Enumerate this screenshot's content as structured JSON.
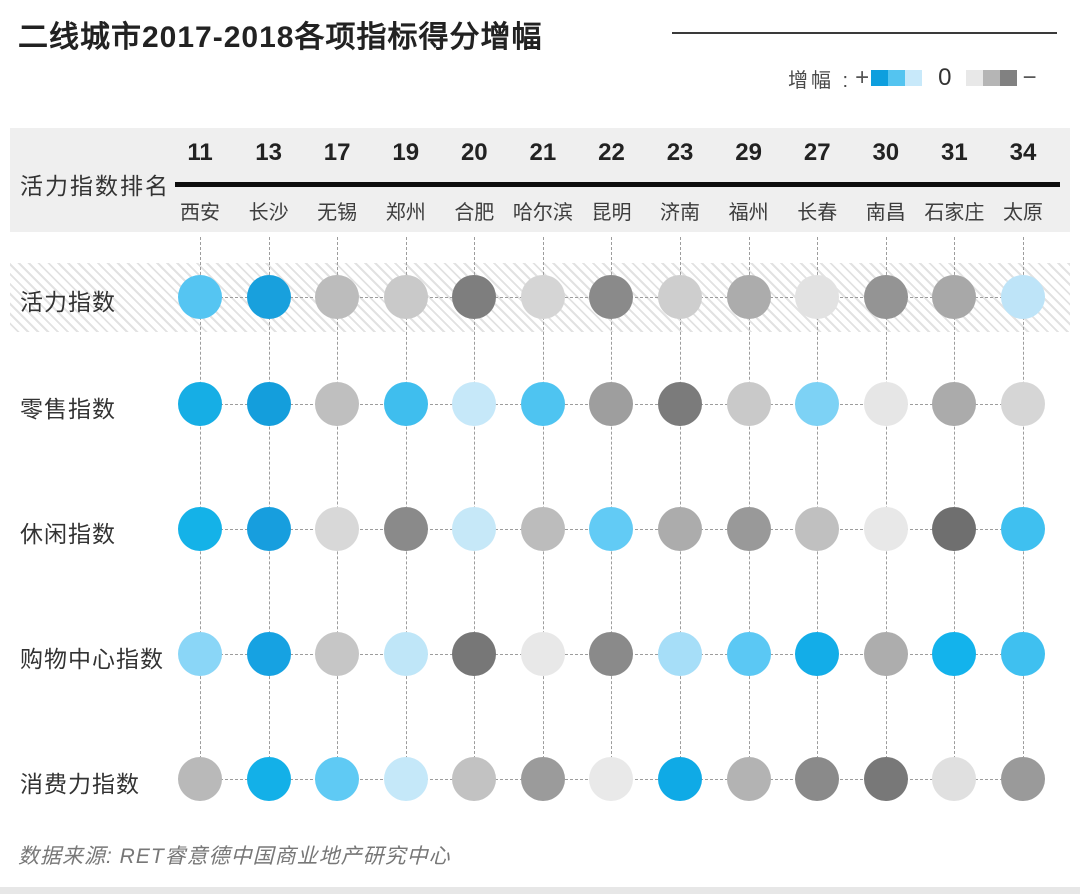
{
  "title": "二线城市2017-2018各项指标得分增幅",
  "source": "数据来源: RET睿意德中国商业地产研究中心",
  "legend": {
    "label": "增幅 :",
    "positive_symbol": "+",
    "zero_symbol": "0",
    "negative_symbol": "−",
    "positive_colors": [
      "#0E9FDE",
      "#54C4F0",
      "#C8E9FA"
    ],
    "negative_colors": [
      "#E8E8E8",
      "#B5B5B5",
      "#818181"
    ]
  },
  "chart_data": {
    "type": "heatmap",
    "title": "二线城市2017-2018各项指标得分增幅",
    "column_header_label": "活力指数排名",
    "legend": {
      "label": "增幅 :",
      "positive_symbol": "+",
      "zero_symbol": "0",
      "negative_symbol": "−",
      "positive_colors": [
        "#0E9FDE",
        "#54C4F0",
        "#C8E9FA"
      ],
      "negative_colors": [
        "#E8E8E8",
        "#B5B5B5",
        "#818181"
      ]
    },
    "columns": [
      {
        "rank": "11",
        "city": "西安"
      },
      {
        "rank": "13",
        "city": "长沙"
      },
      {
        "rank": "17",
        "city": "无锡"
      },
      {
        "rank": "19",
        "city": "郑州"
      },
      {
        "rank": "20",
        "city": "合肥"
      },
      {
        "rank": "21",
        "city": "哈尔滨"
      },
      {
        "rank": "22",
        "city": "昆明"
      },
      {
        "rank": "23",
        "city": "济南"
      },
      {
        "rank": "29",
        "city": "福州"
      },
      {
        "rank": "27",
        "city": "长春"
      },
      {
        "rank": "30",
        "city": "南昌"
      },
      {
        "rank": "31",
        "city": "石家庄"
      },
      {
        "rank": "34",
        "city": "太原"
      }
    ],
    "rows": [
      {
        "label": "活力指数",
        "highlighted": true,
        "dot_colors": [
          "#55C5F2",
          "#18A0DD",
          "#BCBCBC",
          "#C9C9C9",
          "#7E7E7E",
          "#D5D5D5",
          "#8A8A8A",
          "#CECECE",
          "#ACACAC",
          "#E2E2E2",
          "#949494",
          "#A8A8A8",
          "#BEE4F8"
        ]
      },
      {
        "label": "零售指数",
        "highlighted": false,
        "dot_colors": [
          "#16AEE5",
          "#149EDC",
          "#BFBFBF",
          "#3FBEEE",
          "#C6E8F9",
          "#4EC4F1",
          "#9E9E9E",
          "#7B7B7B",
          "#C9C9C9",
          "#7DD2F5",
          "#E6E6E6",
          "#ABABAB",
          "#D6D6D6"
        ]
      },
      {
        "label": "休闲指数",
        "highlighted": false,
        "dot_colors": [
          "#14B2E8",
          "#179EDE",
          "#D8D8D8",
          "#8A8A8A",
          "#C6E8F8",
          "#BCBCBC",
          "#62CBF5",
          "#ACACAC",
          "#999999",
          "#C0C0C0",
          "#E8E8E8",
          "#6F6F6F",
          "#3FC0F0"
        ]
      },
      {
        "label": "购物中心指数",
        "highlighted": false,
        "dot_colors": [
          "#8AD6F7",
          "#16A2E2",
          "#C6C6C6",
          "#BFE6F8",
          "#777777",
          "#E8E8E8",
          "#8A8A8A",
          "#A6DEF8",
          "#5BC8F4",
          "#13ADE8",
          "#ADADAD",
          "#13B3EC",
          "#3FC0F0"
        ]
      },
      {
        "label": "消费力指数",
        "highlighted": false,
        "dot_colors": [
          "#B9B9B9",
          "#13B0E8",
          "#5FCAF4",
          "#C5E8F9",
          "#C2C2C2",
          "#9B9B9B",
          "#E9E9E9",
          "#0FAAE6",
          "#B3B3B3",
          "#8A8A8A",
          "#787878",
          "#E0E0E0",
          "#9A9A9A"
        ]
      }
    ]
  }
}
